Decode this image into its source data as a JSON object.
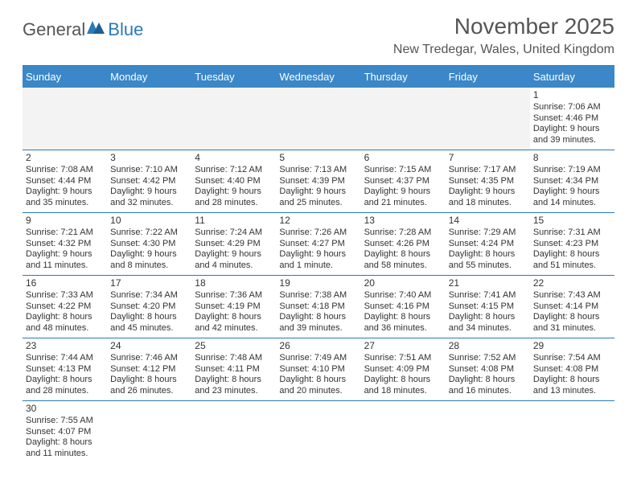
{
  "brand": {
    "part1": "General",
    "part2": "Blue",
    "accent_color": "#2a7ab9",
    "text_color": "#555555"
  },
  "title": "November 2025",
  "location": "New Tredegar, Wales, United Kingdom",
  "header_bg": "#3b87c8",
  "header_text_color": "#ffffff",
  "border_color": "#2a7ab9",
  "empty_bg": "#f3f3f3",
  "day_headers": [
    "Sunday",
    "Monday",
    "Tuesday",
    "Wednesday",
    "Thursday",
    "Friday",
    "Saturday"
  ],
  "weeks": [
    [
      null,
      null,
      null,
      null,
      null,
      null,
      {
        "n": "1",
        "sr": "7:06 AM",
        "ss": "4:46 PM",
        "dl": "9 hours and 39 minutes."
      }
    ],
    [
      {
        "n": "2",
        "sr": "7:08 AM",
        "ss": "4:44 PM",
        "dl": "9 hours and 35 minutes."
      },
      {
        "n": "3",
        "sr": "7:10 AM",
        "ss": "4:42 PM",
        "dl": "9 hours and 32 minutes."
      },
      {
        "n": "4",
        "sr": "7:12 AM",
        "ss": "4:40 PM",
        "dl": "9 hours and 28 minutes."
      },
      {
        "n": "5",
        "sr": "7:13 AM",
        "ss": "4:39 PM",
        "dl": "9 hours and 25 minutes."
      },
      {
        "n": "6",
        "sr": "7:15 AM",
        "ss": "4:37 PM",
        "dl": "9 hours and 21 minutes."
      },
      {
        "n": "7",
        "sr": "7:17 AM",
        "ss": "4:35 PM",
        "dl": "9 hours and 18 minutes."
      },
      {
        "n": "8",
        "sr": "7:19 AM",
        "ss": "4:34 PM",
        "dl": "9 hours and 14 minutes."
      }
    ],
    [
      {
        "n": "9",
        "sr": "7:21 AM",
        "ss": "4:32 PM",
        "dl": "9 hours and 11 minutes."
      },
      {
        "n": "10",
        "sr": "7:22 AM",
        "ss": "4:30 PM",
        "dl": "9 hours and 8 minutes."
      },
      {
        "n": "11",
        "sr": "7:24 AM",
        "ss": "4:29 PM",
        "dl": "9 hours and 4 minutes."
      },
      {
        "n": "12",
        "sr": "7:26 AM",
        "ss": "4:27 PM",
        "dl": "9 hours and 1 minute."
      },
      {
        "n": "13",
        "sr": "7:28 AM",
        "ss": "4:26 PM",
        "dl": "8 hours and 58 minutes."
      },
      {
        "n": "14",
        "sr": "7:29 AM",
        "ss": "4:24 PM",
        "dl": "8 hours and 55 minutes."
      },
      {
        "n": "15",
        "sr": "7:31 AM",
        "ss": "4:23 PM",
        "dl": "8 hours and 51 minutes."
      }
    ],
    [
      {
        "n": "16",
        "sr": "7:33 AM",
        "ss": "4:22 PM",
        "dl": "8 hours and 48 minutes."
      },
      {
        "n": "17",
        "sr": "7:34 AM",
        "ss": "4:20 PM",
        "dl": "8 hours and 45 minutes."
      },
      {
        "n": "18",
        "sr": "7:36 AM",
        "ss": "4:19 PM",
        "dl": "8 hours and 42 minutes."
      },
      {
        "n": "19",
        "sr": "7:38 AM",
        "ss": "4:18 PM",
        "dl": "8 hours and 39 minutes."
      },
      {
        "n": "20",
        "sr": "7:40 AM",
        "ss": "4:16 PM",
        "dl": "8 hours and 36 minutes."
      },
      {
        "n": "21",
        "sr": "7:41 AM",
        "ss": "4:15 PM",
        "dl": "8 hours and 34 minutes."
      },
      {
        "n": "22",
        "sr": "7:43 AM",
        "ss": "4:14 PM",
        "dl": "8 hours and 31 minutes."
      }
    ],
    [
      {
        "n": "23",
        "sr": "7:44 AM",
        "ss": "4:13 PM",
        "dl": "8 hours and 28 minutes."
      },
      {
        "n": "24",
        "sr": "7:46 AM",
        "ss": "4:12 PM",
        "dl": "8 hours and 26 minutes."
      },
      {
        "n": "25",
        "sr": "7:48 AM",
        "ss": "4:11 PM",
        "dl": "8 hours and 23 minutes."
      },
      {
        "n": "26",
        "sr": "7:49 AM",
        "ss": "4:10 PM",
        "dl": "8 hours and 20 minutes."
      },
      {
        "n": "27",
        "sr": "7:51 AM",
        "ss": "4:09 PM",
        "dl": "8 hours and 18 minutes."
      },
      {
        "n": "28",
        "sr": "7:52 AM",
        "ss": "4:08 PM",
        "dl": "8 hours and 16 minutes."
      },
      {
        "n": "29",
        "sr": "7:54 AM",
        "ss": "4:08 PM",
        "dl": "8 hours and 13 minutes."
      }
    ],
    [
      {
        "n": "30",
        "sr": "7:55 AM",
        "ss": "4:07 PM",
        "dl": "8 hours and 11 minutes."
      },
      null,
      null,
      null,
      null,
      null,
      null
    ]
  ],
  "labels": {
    "sunrise": "Sunrise: ",
    "sunset": "Sunset: ",
    "daylight": "Daylight: "
  }
}
